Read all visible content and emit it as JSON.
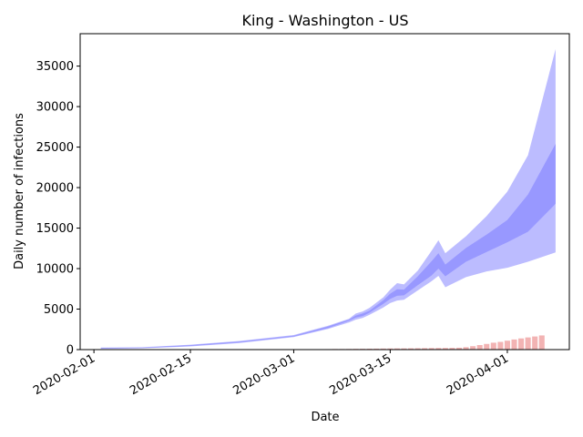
{
  "chart_data": {
    "type": "area",
    "title": "King - Washington - US",
    "xlabel": "Date",
    "ylabel": "Daily number of infections",
    "x_axis": {
      "min": "2020-01-30",
      "max": "2020-04-10",
      "tick_dates": [
        "2020-02-01",
        "2020-02-15",
        "2020-03-01",
        "2020-03-15",
        "2020-04-01"
      ],
      "tick_labels": [
        "2020-02-01",
        "2020-02-15",
        "2020-03-01",
        "2020-03-15",
        "2020-04-01"
      ]
    },
    "y_axis": {
      "min": 0,
      "max": 39000,
      "ticks": [
        0,
        5000,
        10000,
        15000,
        20000,
        25000,
        30000,
        35000
      ],
      "tick_labels": [
        "0",
        "5000",
        "10000",
        "15000",
        "20000",
        "25000",
        "30000",
        "35000"
      ]
    },
    "grid": false,
    "colors": {
      "outer_band": "#bcbcff",
      "inner_band": "#9898ff",
      "bars": "#f2b3b3"
    },
    "band_dates": [
      "2020-02-02",
      "2020-02-08",
      "2020-02-15",
      "2020-02-22",
      "2020-03-01",
      "2020-03-06",
      "2020-03-09",
      "2020-03-10",
      "2020-03-11",
      "2020-03-12",
      "2020-03-14",
      "2020-03-15",
      "2020-03-16",
      "2020-03-17",
      "2020-03-19",
      "2020-03-21",
      "2020-03-22",
      "2020-03-23",
      "2020-03-26",
      "2020-03-29",
      "2020-04-01",
      "2020-04-04",
      "2020-04-08"
    ],
    "series": [
      {
        "name": "",
        "type": "band",
        "color_key": "outer_band",
        "lower": [
          100,
          150,
          400,
          800,
          1550,
          2550,
          3350,
          3700,
          3900,
          4300,
          5200,
          5750,
          6050,
          6150,
          7300,
          8450,
          9100,
          7700,
          8950,
          9650,
          10100,
          10850,
          12000
        ],
        "upper": [
          250,
          300,
          600,
          1050,
          1800,
          2950,
          3800,
          4450,
          4700,
          5150,
          6450,
          7400,
          8200,
          8050,
          9750,
          12200,
          13500,
          11900,
          14000,
          16500,
          19500,
          24000,
          37100
        ]
      },
      {
        "name": "",
        "type": "band",
        "color_key": "inner_band",
        "lower": [
          130,
          190,
          450,
          870,
          1620,
          2650,
          3550,
          3950,
          4150,
          4550,
          5650,
          6250,
          6650,
          6700,
          7950,
          9150,
          10000,
          9050,
          10850,
          12050,
          13250,
          14550,
          18000
        ],
        "upper": [
          210,
          250,
          550,
          980,
          1720,
          2850,
          3700,
          4200,
          4450,
          4800,
          6100,
          6900,
          7450,
          7400,
          9050,
          10900,
          11900,
          10500,
          12550,
          14200,
          16000,
          19150,
          25400
        ]
      },
      {
        "name": "",
        "type": "bar",
        "color_key": "bars",
        "x": [
          "2020-03-05",
          "2020-03-06",
          "2020-03-07",
          "2020-03-08",
          "2020-03-09",
          "2020-03-10",
          "2020-03-11",
          "2020-03-12",
          "2020-03-13",
          "2020-03-14",
          "2020-03-15",
          "2020-03-16",
          "2020-03-17",
          "2020-03-18",
          "2020-03-19",
          "2020-03-20",
          "2020-03-21",
          "2020-03-22",
          "2020-03-23",
          "2020-03-24",
          "2020-03-25",
          "2020-03-26",
          "2020-03-27",
          "2020-03-28",
          "2020-03-29",
          "2020-03-30",
          "2020-03-31",
          "2020-04-01",
          "2020-04-02",
          "2020-04-03",
          "2020-04-04",
          "2020-04-05",
          "2020-04-06"
        ],
        "values": [
          40,
          60,
          70,
          70,
          80,
          90,
          100,
          110,
          120,
          130,
          140,
          150,
          150,
          160,
          170,
          180,
          190,
          200,
          200,
          210,
          230,
          300,
          420,
          560,
          700,
          850,
          950,
          1100,
          1250,
          1380,
          1500,
          1620,
          1750
        ]
      }
    ]
  }
}
